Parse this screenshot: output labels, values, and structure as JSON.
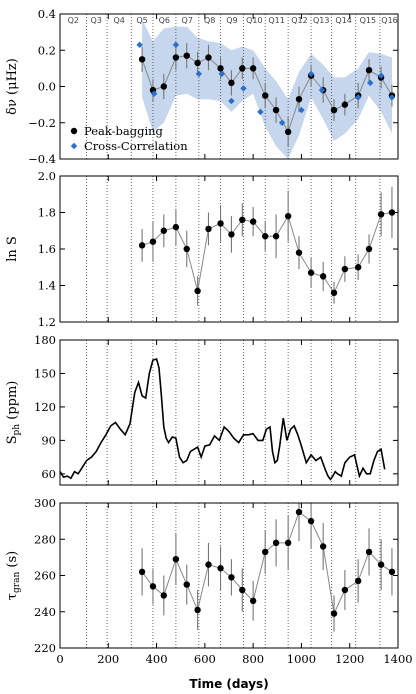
{
  "xaxis": {
    "label": "Time (days)",
    "lim": [
      0,
      1400
    ],
    "ticks": [
      0,
      200,
      400,
      600,
      800,
      1000,
      1200,
      1400
    ]
  },
  "quarters": {
    "boundaries": [
      110,
      195,
      295,
      385,
      480,
      575,
      665,
      760,
      850,
      945,
      1040,
      1125,
      1225,
      1325
    ],
    "labels": [
      {
        "text": "Q2",
        "x": 55
      },
      {
        "text": "Q3",
        "x": 150
      },
      {
        "text": "Q4",
        "x": 245
      },
      {
        "text": "Q5",
        "x": 340
      },
      {
        "text": "Q6",
        "x": 432
      },
      {
        "text": "Q7",
        "x": 527
      },
      {
        "text": "Q8",
        "x": 620
      },
      {
        "text": "Q9",
        "x": 712
      },
      {
        "text": "Q10",
        "x": 805
      },
      {
        "text": "Q11",
        "x": 897
      },
      {
        "text": "Q12",
        "x": 992
      },
      {
        "text": "Q13",
        "x": 1082
      },
      {
        "text": "Q14",
        "x": 1175
      },
      {
        "text": "Q15",
        "x": 1275
      },
      {
        "text": "Q16",
        "x": 1365
      }
    ]
  },
  "chart_data": [
    {
      "type": "line",
      "ylabel": "δν (μHz)",
      "ylim": [
        -0.4,
        0.4
      ],
      "yticks": [
        "0.4",
        "0.2",
        "0.0",
        "−0.2",
        "−0.4"
      ],
      "ytick_values": [
        0.4,
        0.2,
        0.0,
        -0.2,
        -0.4
      ],
      "legend": {
        "position": "bottom-left",
        "items": [
          "Peak-bagging",
          "Cross-Correlation"
        ]
      },
      "series": [
        {
          "name": "Peak-bagging",
          "x": [
            340,
            385,
            430,
            480,
            525,
            570,
            615,
            665,
            710,
            755,
            800,
            850,
            895,
            945,
            990,
            1040,
            1090,
            1135,
            1180,
            1235,
            1280,
            1330,
            1375
          ],
          "y": [
            0.15,
            -0.02,
            0.0,
            0.16,
            0.17,
            0.13,
            0.16,
            0.1,
            0.02,
            0.1,
            0.1,
            -0.05,
            -0.13,
            -0.25,
            -0.07,
            0.06,
            -0.02,
            -0.13,
            -0.1,
            -0.05,
            0.09,
            0.05,
            -0.05
          ],
          "yerr": [
            0.07,
            0.06,
            0.07,
            0.07,
            0.07,
            0.06,
            0.07,
            0.06,
            0.07,
            0.06,
            0.06,
            0.07,
            0.07,
            0.08,
            0.07,
            0.06,
            0.07,
            0.06,
            0.06,
            0.07,
            0.06,
            0.06,
            0.06
          ]
        },
        {
          "name": "Cross-Correlation",
          "x": [
            330,
            390,
            480,
            575,
            670,
            710,
            760,
            830,
            920,
            1000,
            1040,
            1085,
            1235,
            1285,
            1330,
            1375
          ],
          "y": [
            0.23,
            -0.04,
            0.23,
            0.07,
            0.07,
            -0.08,
            -0.01,
            -0.14,
            -0.2,
            -0.13,
            0.07,
            -0.02,
            -0.06,
            0.02,
            0.06,
            -0.06
          ]
        }
      ],
      "band": {
        "x": [
          340,
          385,
          430,
          480,
          525,
          570,
          615,
          665,
          710,
          755,
          800,
          850,
          895,
          945,
          990,
          1040,
          1090,
          1135,
          1180,
          1235,
          1280,
          1330,
          1375
        ],
        "upper": [
          0.37,
          0.25,
          0.32,
          0.33,
          0.33,
          0.27,
          0.25,
          0.24,
          0.2,
          0.22,
          0.2,
          0.1,
          0.03,
          -0.07,
          0.08,
          0.18,
          0.12,
          0.05,
          0.05,
          0.1,
          0.19,
          0.18,
          0.16
        ],
        "lower": [
          -0.06,
          -0.25,
          -0.2,
          -0.05,
          -0.04,
          -0.07,
          -0.07,
          -0.08,
          -0.14,
          -0.08,
          -0.04,
          -0.22,
          -0.33,
          -0.4,
          -0.27,
          -0.06,
          -0.18,
          -0.3,
          -0.26,
          -0.18,
          -0.05,
          -0.14,
          -0.26
        ]
      }
    },
    {
      "type": "line",
      "ylabel": "ln S",
      "ylim": [
        1.2,
        2.0
      ],
      "yticks": [
        "2.0",
        "1.8",
        "1.6",
        "1.4",
        "1.2"
      ],
      "ytick_values": [
        2.0,
        1.8,
        1.6,
        1.4,
        1.2
      ],
      "series": [
        {
          "name": "",
          "x": [
            340,
            385,
            430,
            480,
            525,
            570,
            615,
            665,
            710,
            755,
            800,
            850,
            895,
            945,
            990,
            1040,
            1090,
            1135,
            1180,
            1235,
            1280,
            1330,
            1375
          ],
          "y": [
            1.62,
            1.64,
            1.7,
            1.72,
            1.6,
            1.37,
            1.71,
            1.74,
            1.68,
            1.76,
            1.75,
            1.67,
            1.67,
            1.78,
            1.58,
            1.47,
            1.45,
            1.36,
            1.49,
            1.5,
            1.6,
            1.79,
            1.8
          ],
          "yerr": [
            0.09,
            0.11,
            0.09,
            0.1,
            0.1,
            0.08,
            0.09,
            0.1,
            0.1,
            0.09,
            0.08,
            0.08,
            0.12,
            0.14,
            0.09,
            0.08,
            0.08,
            0.06,
            0.07,
            0.07,
            0.08,
            0.12,
            0.14
          ]
        }
      ]
    },
    {
      "type": "line",
      "ylabel": "S_ph (ppm)",
      "ylim": [
        50,
        180
      ],
      "yticks": [
        "180",
        "150",
        "120",
        "90",
        "60"
      ],
      "ytick_values": [
        180,
        150,
        120,
        90,
        60
      ],
      "series": [
        {
          "name": "",
          "x": [
            0,
            15,
            30,
            45,
            60,
            75,
            90,
            110,
            130,
            150,
            170,
            190,
            210,
            230,
            250,
            270,
            290,
            310,
            325,
            340,
            355,
            370,
            385,
            400,
            410,
            420,
            430,
            440,
            450,
            465,
            480,
            495,
            510,
            525,
            540,
            555,
            570,
            585,
            600,
            620,
            640,
            660,
            680,
            700,
            720,
            740,
            760,
            780,
            800,
            820,
            840,
            855,
            870,
            880,
            890,
            900,
            910,
            925,
            940,
            955,
            970,
            985,
            1000,
            1020,
            1040,
            1060,
            1080,
            1100,
            1110,
            1120,
            1130,
            1140,
            1150,
            1165,
            1180,
            1200,
            1220,
            1240,
            1255,
            1270,
            1285,
            1300,
            1315,
            1330,
            1345
          ],
          "y": [
            62,
            57,
            58,
            56,
            62,
            60,
            65,
            72,
            75,
            80,
            88,
            95,
            103,
            106,
            100,
            95,
            105,
            133,
            142,
            130,
            128,
            150,
            162,
            163,
            155,
            130,
            102,
            92,
            88,
            93,
            92,
            75,
            70,
            72,
            80,
            82,
            84,
            75,
            85,
            86,
            94,
            90,
            102,
            98,
            92,
            88,
            95,
            95,
            96,
            90,
            90,
            100,
            102,
            80,
            70,
            72,
            85,
            110,
            90,
            100,
            103,
            95,
            85,
            70,
            77,
            72,
            75,
            63,
            58,
            55,
            58,
            62,
            60,
            58,
            70,
            75,
            77,
            58,
            65,
            60,
            60,
            72,
            80,
            82,
            64
          ]
        }
      ]
    },
    {
      "type": "line",
      "ylabel": "τ_gran (s)",
      "ylim": [
        220,
        300
      ],
      "yticks": [
        "300",
        "280",
        "260",
        "240",
        "220"
      ],
      "ytick_values": [
        300,
        280,
        260,
        240,
        220
      ],
      "series": [
        {
          "name": "",
          "x": [
            340,
            385,
            430,
            480,
            525,
            570,
            615,
            665,
            710,
            755,
            800,
            850,
            895,
            945,
            990,
            1040,
            1090,
            1135,
            1180,
            1235,
            1280,
            1330,
            1375
          ],
          "y": [
            262,
            254,
            249,
            269,
            255,
            241,
            266,
            264,
            259,
            252,
            246,
            273,
            278,
            278,
            295,
            290,
            276,
            239,
            252,
            257,
            273,
            266,
            262
          ],
          "yerr": [
            13,
            10,
            11,
            14,
            11,
            11,
            12,
            12,
            10,
            12,
            11,
            12,
            13,
            15,
            16,
            15,
            13,
            10,
            11,
            12,
            13,
            14,
            13
          ]
        }
      ]
    }
  ],
  "colors": {
    "peak": "#000000",
    "cross": "#2a6fc9",
    "band": "#c6d6ec",
    "errbar": "#777777",
    "connector": "#888888",
    "quarterline": "#555555"
  },
  "ylabels_text": {
    "p0_main": "δν (μHz)",
    "p1_main": "ln S",
    "p2_main": "S",
    "p2_sub": "ph",
    "p2_unit": " (ppm)",
    "p3_main": "τ",
    "p3_sub": "gran",
    "p3_unit": " (s)"
  }
}
